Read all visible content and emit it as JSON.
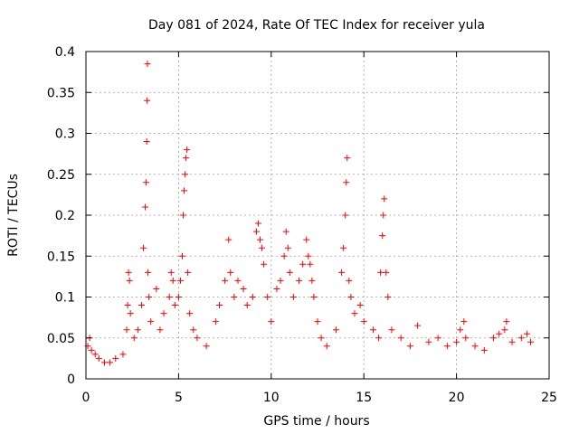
{
  "chart_data": {
    "type": "scatter",
    "title": "Day 081 of 2024, Rate Of TEC Index for receiver yula",
    "xlabel": "GPS time / hours",
    "ylabel": "ROTI / TECUs",
    "xlim": [
      0,
      25
    ],
    "ylim": [
      0,
      0.4
    ],
    "xticks": [
      0,
      5,
      10,
      15,
      20,
      25
    ],
    "xtick_labels": [
      "0",
      "5",
      "10",
      "15",
      "20",
      "25"
    ],
    "yticks": [
      0,
      0.05,
      0.1,
      0.15,
      0.2,
      0.25,
      0.3,
      0.35,
      0.4
    ],
    "ytick_labels": [
      "0",
      "0.05",
      "0.1",
      "0.15",
      "0.2",
      "0.25",
      "0.3",
      "0.35",
      "0.4"
    ],
    "grid": true,
    "marker": "+",
    "color": "#ff0000",
    "series": [
      {
        "x": [
          0.1,
          0.2,
          0.3,
          0.5,
          0.7,
          1.0,
          1.3,
          1.6,
          2.0,
          2.2,
          2.25,
          2.3,
          2.35,
          2.4,
          2.6,
          2.8,
          3.0,
          3.1,
          3.2,
          3.25,
          3.28,
          3.3,
          3.32,
          3.35,
          3.4,
          3.5,
          3.8,
          4.0,
          4.2,
          4.5,
          4.6,
          4.7,
          4.8,
          5.0,
          5.1,
          5.2,
          5.25,
          5.3,
          5.35,
          5.4,
          5.45,
          5.5,
          5.6,
          5.8,
          6.0,
          6.5,
          7.0,
          7.2,
          7.5,
          7.7,
          7.8,
          8.0,
          8.2,
          8.5,
          8.7,
          9.0,
          9.2,
          9.3,
          9.4,
          9.5,
          9.6,
          9.8,
          10.0,
          10.3,
          10.5,
          10.7,
          10.8,
          10.9,
          11.0,
          11.2,
          11.5,
          11.7,
          11.9,
          12.0,
          12.1,
          12.2,
          12.3,
          12.5,
          12.7,
          13.0,
          13.5,
          13.8,
          13.9,
          14.0,
          14.05,
          14.1,
          14.2,
          14.3,
          14.5,
          14.8,
          15.0,
          15.5,
          15.8,
          15.9,
          16.0,
          16.05,
          16.1,
          16.2,
          16.3,
          16.5,
          17.0,
          17.5,
          17.9,
          18.5,
          19.0,
          19.5,
          20.0,
          20.2,
          20.4,
          20.5,
          21.0,
          21.5,
          22.0,
          22.3,
          22.6,
          22.7,
          23.0,
          23.5,
          23.8,
          24.0
        ],
        "y": [
          0.04,
          0.05,
          0.035,
          0.03,
          0.025,
          0.02,
          0.02,
          0.025,
          0.03,
          0.06,
          0.09,
          0.13,
          0.12,
          0.08,
          0.05,
          0.06,
          0.09,
          0.16,
          0.21,
          0.24,
          0.29,
          0.34,
          0.385,
          0.13,
          0.1,
          0.07,
          0.11,
          0.06,
          0.08,
          0.1,
          0.13,
          0.12,
          0.09,
          0.1,
          0.12,
          0.15,
          0.2,
          0.23,
          0.25,
          0.27,
          0.28,
          0.13,
          0.08,
          0.06,
          0.05,
          0.04,
          0.07,
          0.09,
          0.12,
          0.17,
          0.13,
          0.1,
          0.12,
          0.11,
          0.09,
          0.1,
          0.18,
          0.19,
          0.17,
          0.16,
          0.14,
          0.1,
          0.07,
          0.11,
          0.12,
          0.15,
          0.18,
          0.16,
          0.13,
          0.1,
          0.12,
          0.14,
          0.17,
          0.15,
          0.14,
          0.12,
          0.1,
          0.07,
          0.05,
          0.04,
          0.06,
          0.13,
          0.16,
          0.2,
          0.24,
          0.27,
          0.12,
          0.1,
          0.08,
          0.09,
          0.07,
          0.06,
          0.05,
          0.13,
          0.175,
          0.2,
          0.22,
          0.13,
          0.1,
          0.06,
          0.05,
          0.04,
          0.065,
          0.045,
          0.05,
          0.04,
          0.045,
          0.06,
          0.07,
          0.05,
          0.04,
          0.035,
          0.05,
          0.055,
          0.06,
          0.07,
          0.045,
          0.05,
          0.055,
          0.045
        ]
      }
    ]
  }
}
